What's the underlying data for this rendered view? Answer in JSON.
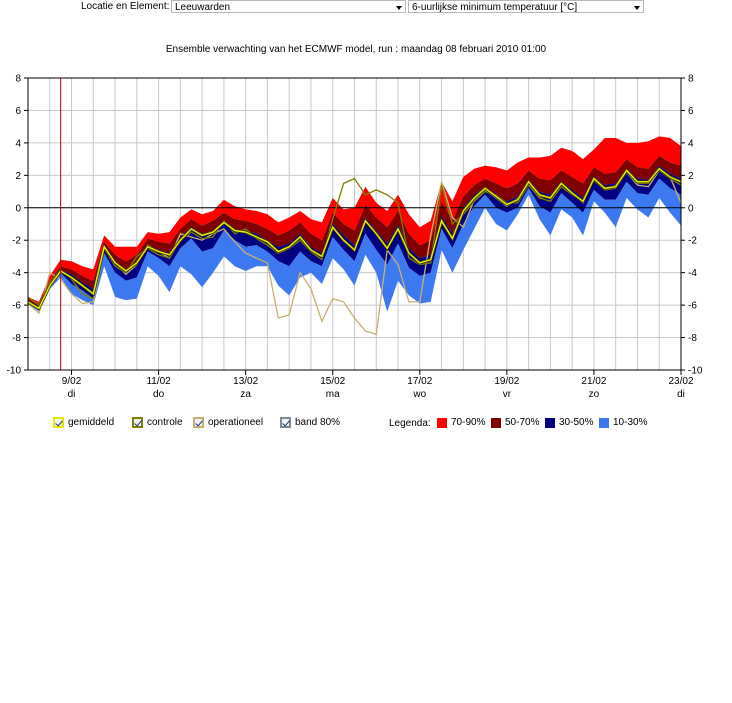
{
  "toolbar": {
    "label": "Locatie en Element:",
    "location": "Leeuwarden",
    "element": "6-uurlijkse minimum temperatuur [°C]"
  },
  "toggles": [
    {
      "label": "gemiddeld",
      "color": "#e8e800"
    },
    {
      "label": "controle",
      "color": "#808000"
    },
    {
      "label": "operationeel",
      "color": "#c8b070"
    },
    {
      "label": "band 80%",
      "color": "#808890"
    }
  ],
  "bands_legend": {
    "label": "Legenda:",
    "items": [
      {
        "label": "70-90%",
        "color": "#ff0000"
      },
      {
        "label": "50-70%",
        "color": "#800000"
      },
      {
        "label": "30-50%",
        "color": "#000080"
      },
      {
        "label": "10-30%",
        "color": "#3c78f0"
      }
    ]
  },
  "chart_data": {
    "type": "area",
    "title": "Ensemble verwachting van het ECMWF model, run : maandag 08 februari 2010 01:00",
    "xlabel": "",
    "ylabel": "",
    "ylim": [
      -10,
      8
    ],
    "yticks": [
      -10,
      -8,
      -6,
      -4,
      -2,
      0,
      2,
      4,
      6,
      8
    ],
    "grid": true,
    "x_date_ticks": [
      {
        "date": "9/02",
        "day": "di",
        "step": 4
      },
      {
        "date": "11/02",
        "day": "do",
        "step": 12
      },
      {
        "date": "13/02",
        "day": "za",
        "step": 20
      },
      {
        "date": "15/02",
        "day": "ma",
        "step": 28
      },
      {
        "date": "17/02",
        "day": "wo",
        "step": 36
      },
      {
        "date": "19/02",
        "day": "vr",
        "step": 44
      },
      {
        "date": "21/02",
        "day": "zo",
        "step": 52
      },
      {
        "date": "23/02",
        "day": "di",
        "step": 60
      }
    ],
    "x_steps_6h": [
      0,
      1,
      2,
      3,
      4,
      5,
      6,
      7,
      8,
      9,
      10,
      11,
      12,
      13,
      14,
      15,
      16,
      17,
      18,
      19,
      20,
      21,
      22,
      23,
      24,
      25,
      26,
      27,
      28,
      29,
      30,
      31,
      32,
      33,
      34,
      35,
      36,
      37,
      38,
      39,
      40,
      41,
      42,
      43,
      44,
      45,
      46,
      47,
      48,
      49,
      50,
      51,
      52,
      53,
      54,
      55,
      56,
      57,
      58,
      59,
      60
    ],
    "run_marker_step": 3,
    "series": [
      {
        "name": "gemiddeld",
        "color": "#e8e800",
        "values": [
          -5.8,
          -6.2,
          -4.8,
          -3.9,
          -4.3,
          -4.8,
          -5.3,
          -2.4,
          -3.4,
          -3.9,
          -3.4,
          -2.4,
          -2.7,
          -2.9,
          -2.0,
          -1.3,
          -1.7,
          -1.5,
          -0.9,
          -1.4,
          -1.5,
          -1.8,
          -2.1,
          -2.7,
          -2.4,
          -1.8,
          -2.6,
          -3.0,
          -1.2,
          -2.0,
          -2.6,
          -0.8,
          -1.6,
          -2.5,
          -1.3,
          -2.8,
          -3.4,
          -3.2,
          -0.8,
          -1.9,
          -0.2,
          0.6,
          1.2,
          0.7,
          0.2,
          0.5,
          1.6,
          0.8,
          0.6,
          1.5,
          0.9,
          0.4,
          1.8,
          1.2,
          1.3,
          2.3,
          1.6,
          1.6,
          2.4,
          1.9,
          1.6
        ]
      },
      {
        "name": "controle",
        "color": "#808000",
        "values": [
          -5.5,
          -6.0,
          -4.6,
          -3.8,
          -4.4,
          -5.3,
          -5.6,
          -2.5,
          -3.6,
          -4.0,
          -3.0,
          -2.5,
          -2.9,
          -3.1,
          -2.0,
          -1.5,
          -1.9,
          -1.8,
          -0.8,
          -1.6,
          -1.3,
          -1.9,
          -2.3,
          -2.8,
          -2.5,
          -2.0,
          -2.7,
          -3.2,
          -0.7,
          1.5,
          1.8,
          0.8,
          1.1,
          0.8,
          0.3,
          -3.1,
          -3.5,
          -3.4,
          1.4,
          -1.0,
          -0.4,
          0.4,
          1.0,
          0.8,
          0.3,
          0.3,
          1.4,
          0.6,
          0.4,
          1.3,
          0.8,
          0.4,
          1.7,
          1.1,
          1.2,
          2.2,
          1.5,
          1.5,
          2.3,
          1.8,
          1.4
        ]
      },
      {
        "name": "operationeel",
        "color": "#c8b070",
        "values": [
          -5.9,
          -6.5,
          -4.0,
          -4.4,
          -5.3,
          -5.9,
          -5.8,
          -2.5,
          -3.4,
          -4.1,
          -3.5,
          -2.3,
          -2.7,
          -3.1,
          -1.6,
          -1.8,
          -2.0,
          -1.6,
          -1.3,
          -2.1,
          -2.8,
          -3.1,
          -3.4,
          -6.8,
          -6.6,
          -4.0,
          -5.0,
          -7.0,
          -5.6,
          -5.8,
          -6.8,
          -7.6,
          -7.8,
          -2.6,
          -3.5,
          -5.8,
          -5.8,
          -1.7,
          1.6,
          -0.6,
          -1.2,
          0.5,
          1.1,
          0.6,
          0.1,
          0.6,
          1.4,
          0.7,
          0.6,
          1.5,
          0.9,
          0.3,
          1.7,
          1.1,
          1.4,
          2.2,
          1.4,
          1.3,
          2.3,
          1.9,
          0.3
        ]
      }
    ],
    "band_series": [
      {
        "name": "70-90%",
        "color": "#ff0000"
      },
      {
        "name": "50-70%",
        "color": "#800000"
      },
      {
        "name": "30-50%",
        "color": "#000080"
      },
      {
        "name": "10-30%",
        "color": "#3c78f0"
      }
    ],
    "percentiles": {
      "p10": [
        -5.9,
        -6.4,
        -5.0,
        -4.3,
        -5.3,
        -5.7,
        -6.0,
        -3.6,
        -5.5,
        -5.7,
        -5.6,
        -3.6,
        -4.2,
        -5.2,
        -3.6,
        -4.1,
        -4.9,
        -4.0,
        -3.0,
        -3.6,
        -3.9,
        -3.6,
        -3.6,
        -4.8,
        -5.4,
        -4.3,
        -4.0,
        -4.7,
        -3.1,
        -3.8,
        -4.8,
        -2.9,
        -4.0,
        -6.4,
        -4.5,
        -5.4,
        -5.9,
        -5.8,
        -2.6,
        -4.0,
        -2.6,
        -1.3,
        0.0,
        -1.0,
        -1.4,
        -0.4,
        0.8,
        -0.7,
        -1.7,
        -0.1,
        -0.6,
        -1.7,
        0.4,
        -0.3,
        -1.2,
        0.6,
        -0.1,
        -0.6,
        0.6,
        -0.3,
        -1.1
      ],
      "p30": [
        -5.8,
        -6.3,
        -4.9,
        -4.0,
        -4.7,
        -5.1,
        -5.6,
        -2.8,
        -4.0,
        -4.5,
        -4.3,
        -2.7,
        -3.1,
        -3.6,
        -2.5,
        -1.9,
        -2.7,
        -2.5,
        -1.4,
        -2.0,
        -2.4,
        -2.3,
        -2.7,
        -3.3,
        -3.6,
        -2.7,
        -3.3,
        -3.6,
        -1.8,
        -2.6,
        -3.3,
        -1.6,
        -2.6,
        -3.5,
        -2.2,
        -3.7,
        -4.2,
        -4.0,
        -1.3,
        -2.5,
        -1.0,
        0.1,
        0.8,
        0.0,
        -0.3,
        0.0,
        1.2,
        0.1,
        -0.3,
        0.9,
        0.3,
        -0.3,
        1.1,
        0.5,
        0.5,
        1.6,
        0.9,
        0.8,
        1.8,
        1.2,
        0.8
      ],
      "p50": [
        -5.7,
        -6.1,
        -4.7,
        -3.8,
        -4.1,
        -4.6,
        -5.0,
        -2.4,
        -3.3,
        -3.8,
        -3.4,
        -2.3,
        -2.6,
        -2.8,
        -1.8,
        -1.2,
        -1.6,
        -1.4,
        -0.8,
        -1.3,
        -1.4,
        -1.6,
        -2.0,
        -2.4,
        -2.2,
        -1.6,
        -2.4,
        -2.8,
        -1.0,
        -1.7,
        -2.3,
        -0.6,
        -1.4,
        -2.2,
        -1.0,
        -2.5,
        -3.1,
        -2.9,
        -0.5,
        -1.6,
        0.0,
        0.8,
        1.3,
        0.8,
        0.4,
        0.7,
        1.7,
        1.0,
        0.8,
        1.6,
        1.1,
        0.6,
        1.9,
        1.4,
        1.5,
        2.4,
        1.8,
        1.7,
        2.6,
        2.1,
        1.8
      ],
      "p70": [
        -5.6,
        -6.0,
        -4.5,
        -3.6,
        -3.8,
        -4.2,
        -4.5,
        -2.1,
        -2.9,
        -3.3,
        -2.9,
        -1.9,
        -2.1,
        -2.2,
        -1.3,
        -0.7,
        -1.1,
        -0.8,
        -0.3,
        -0.7,
        -0.8,
        -1.0,
        -1.3,
        -1.7,
        -1.4,
        -0.9,
        -1.6,
        -2.0,
        -0.3,
        -1.0,
        -1.4,
        0.2,
        -0.6,
        -1.2,
        -0.2,
        -1.6,
        -2.3,
        -2.0,
        0.4,
        -0.8,
        0.7,
        1.4,
        1.8,
        1.5,
        1.2,
        1.5,
        2.3,
        1.8,
        1.7,
        2.3,
        1.9,
        1.5,
        2.5,
        2.1,
        2.2,
        3.0,
        2.5,
        2.4,
        3.2,
        2.8,
        2.6
      ],
      "p90": [
        -5.5,
        -5.8,
        -4.2,
        -3.2,
        -3.3,
        -3.6,
        -3.8,
        -1.7,
        -2.4,
        -2.4,
        -2.4,
        -1.5,
        -1.6,
        -1.5,
        -0.6,
        -0.1,
        -0.4,
        -0.2,
        0.5,
        0.1,
        -0.1,
        -0.2,
        -0.4,
        -0.9,
        -0.6,
        -0.2,
        -0.7,
        -0.9,
        0.6,
        -0.1,
        0.0,
        1.3,
        0.3,
        -0.2,
        0.8,
        -0.4,
        -1.2,
        -0.8,
        1.6,
        0.4,
        1.9,
        2.4,
        2.6,
        2.5,
        2.3,
        2.8,
        3.1,
        3.1,
        3.2,
        3.7,
        3.5,
        3.0,
        3.6,
        4.3,
        4.3,
        4.0,
        4.0,
        4.1,
        4.4,
        4.3,
        3.8
      ]
    }
  }
}
